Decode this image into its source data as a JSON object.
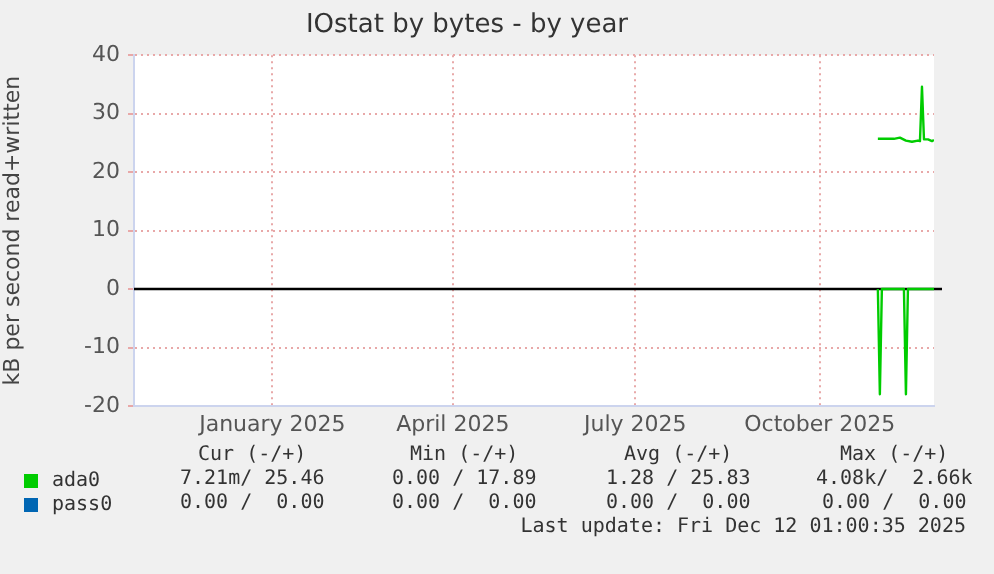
{
  "chart_data": {
    "type": "line",
    "title": "IOstat by bytes - by year",
    "ylabel": "kB per second read+written",
    "xlim": [
      "2024-11-08",
      "2025-12-12"
    ],
    "xticks": [
      {
        "value": "2025-01-16",
        "label": "January 2025"
      },
      {
        "value": "2025-04-16",
        "label": "April 2025"
      },
      {
        "value": "2025-07-16",
        "label": "July 2025"
      },
      {
        "value": "2025-10-16",
        "label": "October 2025"
      }
    ],
    "ylim": [
      -20,
      40
    ],
    "yticks": [
      -20,
      -10,
      0,
      10,
      20,
      30,
      40
    ],
    "grid": true,
    "legend": "bottom left",
    "marker": "none",
    "line_style": "solid",
    "ref_lines": [
      {
        "axis": "y",
        "value": 0,
        "color": "#000000"
      }
    ],
    "series": [
      {
        "name": "ada0",
        "color": "#00cc00",
        "x": [
          "2025-11-14",
          "2025-11-22",
          "2025-11-25",
          "2025-11-28",
          "2025-12-01",
          "2025-12-04",
          "2025-12-05",
          "2025-12-06",
          "2025-12-07",
          "2025-12-09",
          "2025-12-11",
          "2025-12-12"
        ],
        "values": [
          25.7,
          25.7,
          25.9,
          25.4,
          25.2,
          25.4,
          25.3,
          34.6,
          25.6,
          25.6,
          25.3,
          25.5
        ]
      },
      {
        "color": "#00cc00",
        "x": [
          "2025-11-14",
          "2025-11-15",
          "2025-11-16",
          "2025-11-27",
          "2025-11-28",
          "2025-11-29",
          "2025-12-12"
        ],
        "values": [
          0,
          -18,
          0,
          0,
          -18,
          0,
          0
        ]
      },
      {
        "name": "pass0",
        "color": "#0066b3"
      }
    ],
    "annotations": [
      "Cur (-/+)",
      "Min (-/+)",
      "Avg (-/+)",
      "Max (-/+)",
      "7.21m/ 25.46",
      "0.00 / 17.89",
      "1.28 / 25.83",
      "4.08k/  2.66k",
      "0.00 /  0.00",
      "0.00 /  0.00",
      "0.00 /  0.00",
      "0.00 /  0.00",
      "Last update: Fri Dec 12 01:00:35 2025"
    ]
  }
}
